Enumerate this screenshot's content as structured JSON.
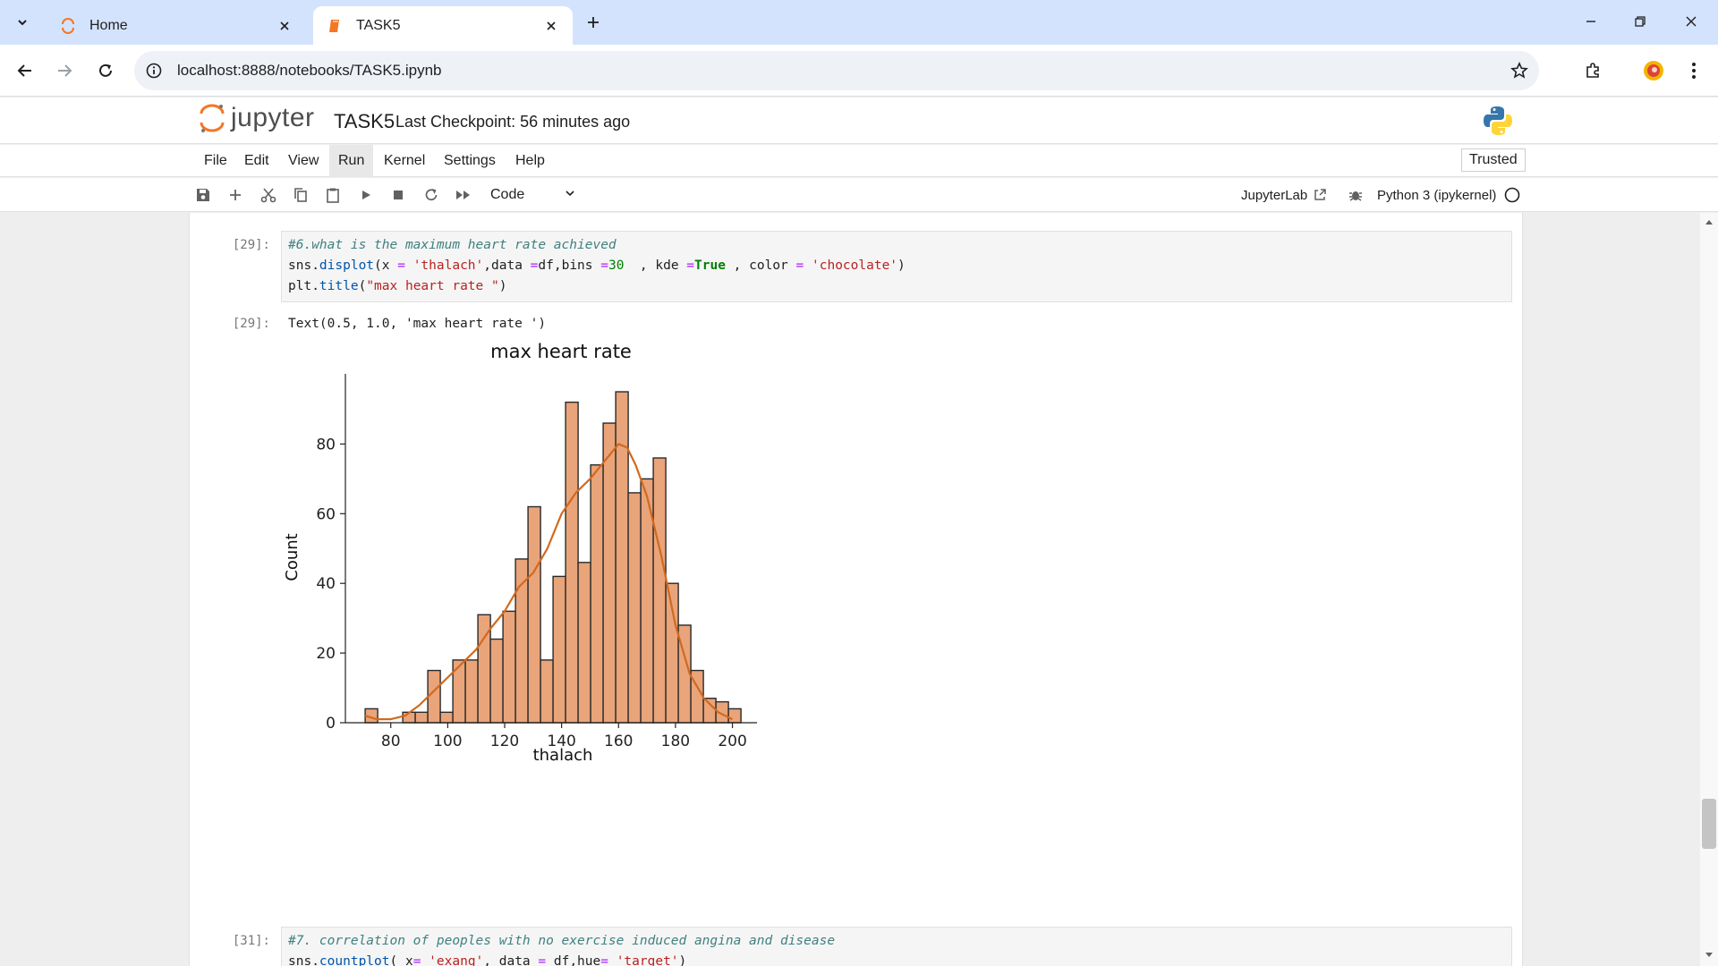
{
  "browser": {
    "tabs": [
      {
        "title": "Home",
        "active": false
      },
      {
        "title": "TASK5",
        "active": true
      }
    ],
    "url": "localhost:8888/notebooks/TASK5.ipynb"
  },
  "jupyter": {
    "logo_text": "jupyter",
    "notebook_name": "TASK5",
    "checkpoint": "Last Checkpoint: 56 minutes ago",
    "menu": [
      "File",
      "Edit",
      "View",
      "Run",
      "Kernel",
      "Settings",
      "Help"
    ],
    "active_menu": "Run",
    "trusted": "Trusted",
    "cell_type": "Code",
    "jupyterlab_link": "JupyterLab",
    "kernel": "Python 3 (ipykernel)"
  },
  "cells": [
    {
      "prompt": "[29]:",
      "lines": [
        "#6.what is the maximum heart rate achieved",
        "sns.displot(x = 'thalach',data =df,bins =30  , kde =True , color = 'chocolate')",
        "plt.title(\"max heart rate \")"
      ],
      "output_prompt": "[29]:",
      "output_text": "Text(0.5, 1.0, 'max heart rate ')"
    },
    {
      "prompt": "[31]:",
      "lines": [
        "#7. correlation of peoples with no exercise induced angina and disease",
        "sns.countplot( x= 'exang', data = df,hue= 'target')"
      ]
    }
  ],
  "chart_data": {
    "type": "bar",
    "title": "max heart rate",
    "xlabel": "thalach",
    "ylabel": "Count",
    "xlim": [
      65,
      208
    ],
    "ylim": [
      0,
      95
    ],
    "xticks": [
      80,
      100,
      120,
      140,
      160,
      180,
      200
    ],
    "yticks": [
      0,
      20,
      40,
      60,
      80
    ],
    "bin_start": 71,
    "bin_width": 4.4,
    "values": [
      4,
      0,
      0,
      3,
      3,
      15,
      3,
      18,
      18,
      31,
      24,
      32,
      47,
      62,
      18,
      42,
      92,
      46,
      74,
      86,
      95,
      66,
      70,
      76,
      40,
      28,
      15,
      7,
      6,
      4
    ],
    "kde": {
      "x": [
        71,
        75,
        80,
        85,
        90,
        95,
        100,
        105,
        110,
        115,
        120,
        125,
        130,
        135,
        140,
        145,
        150,
        155,
        160,
        163,
        166,
        170,
        175,
        180,
        185,
        190,
        195,
        200
      ],
      "y": [
        2,
        1,
        1,
        2,
        5,
        9,
        13,
        17,
        21,
        27,
        32,
        39,
        43,
        50,
        60,
        66,
        70,
        75,
        80,
        79,
        74,
        65,
        48,
        28,
        14,
        7,
        3,
        1
      ]
    },
    "color": "#e9a47a",
    "edge_color": "#2a2a2a",
    "kde_color": "#d2691e",
    "grid": false,
    "legend": false
  }
}
